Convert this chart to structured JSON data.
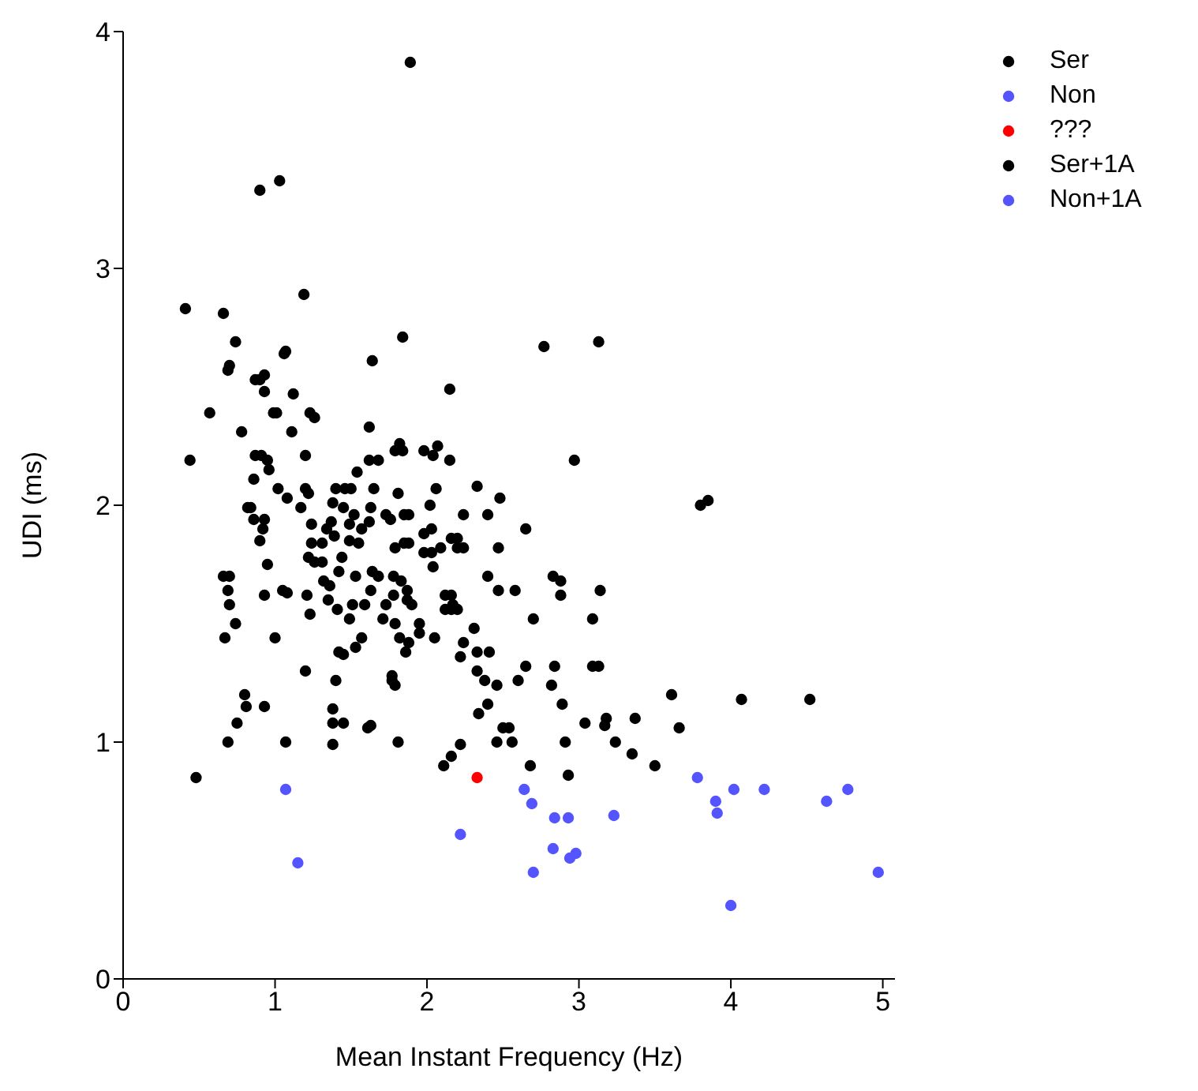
{
  "chart_data": {
    "type": "scatter",
    "xlabel": "Mean Instant Frequency (Hz)",
    "ylabel": "UDI (ms)",
    "xlim": [
      0,
      5.08
    ],
    "ylim": [
      0,
      4
    ],
    "xticks": [
      0,
      1,
      2,
      3,
      4,
      5
    ],
    "yticks": [
      0,
      1,
      2,
      3,
      4
    ],
    "grid": false,
    "legend": "top right",
    "marker": "circle",
    "series": [
      {
        "name": "Ser",
        "color": "#000000",
        "x": [
          0.41,
          0.66,
          1.19,
          0.93,
          1.2,
          0.95,
          1.45,
          0.86,
          1.39,
          1.53,
          1.63,
          1.51,
          1.0,
          1.4,
          0.81,
          0.93,
          1.63,
          2.77,
          3.13,
          2.97,
          1.82,
          1.79,
          1.98,
          2.04,
          2.33,
          2.02,
          1.76,
          2.03,
          2.65,
          2.16,
          2.24,
          2.47,
          1.88,
          1.78,
          2.16,
          2.2,
          2.47,
          2.88,
          2.05,
          1.86,
          2.24,
          1.79,
          2.65,
          2.46,
          2.89,
          2.46,
          2.56,
          2.91,
          2.11,
          2.93,
          3.17,
          3.24,
          3.8,
          3.85,
          3.61,
          4.07,
          4.52,
          3.37,
          3.66,
          3.5
        ],
        "values": [
          2.83,
          2.81,
          2.89,
          2.48,
          2.21,
          2.19,
          1.99,
          1.94,
          1.87,
          1.7,
          1.64,
          1.58,
          1.44,
          1.26,
          1.15,
          1.15,
          1.07,
          2.67,
          2.69,
          2.19,
          2.26,
          2.23,
          2.23,
          2.21,
          2.08,
          2.0,
          1.94,
          1.9,
          1.9,
          1.86,
          1.82,
          1.82,
          1.84,
          1.62,
          1.62,
          1.56,
          1.64,
          1.62,
          1.44,
          1.38,
          1.42,
          1.24,
          1.32,
          1.24,
          1.16,
          1.0,
          1.0,
          1.0,
          0.9,
          0.86,
          1.07,
          1.0,
          2.0,
          2.02,
          1.2,
          1.18,
          1.18,
          1.1,
          1.06,
          0.9
        ]
      },
      {
        "name": "Non",
        "color": "#5555ff",
        "x": [
          1.07,
          1.15,
          2.22,
          2.64,
          2.69,
          2.83,
          2.98,
          2.94,
          2.7,
          3.23,
          3.78,
          3.9,
          3.91,
          4.02,
          4.22,
          4.63,
          4.97,
          4.0
        ],
        "values": [
          0.8,
          0.49,
          0.61,
          0.8,
          0.74,
          0.55,
          0.53,
          0.51,
          0.45,
          0.69,
          0.85,
          0.75,
          0.7,
          0.8,
          0.8,
          0.75,
          0.45,
          0.31
        ]
      },
      {
        "name": "???",
        "color": "#ff0000",
        "x": [
          2.33
        ],
        "values": [
          0.85
        ]
      },
      {
        "name": "Ser+1A",
        "color": "#000000",
        "x": [
          1.89,
          0.9,
          1.03,
          0.74,
          0.7,
          0.69,
          1.07,
          1.06,
          1.64,
          0.87,
          0.9,
          0.93,
          1.12,
          0.57,
          0.99,
          1.01,
          1.23,
          1.26,
          0.78,
          1.11,
          1.62,
          0.44,
          0.87,
          0.91,
          0.96,
          0.86,
          1.62,
          1.68,
          1.54,
          1.02,
          1.08,
          1.2,
          1.22,
          1.17,
          1.4,
          1.46,
          1.5,
          1.65,
          1.38,
          1.63,
          0.82,
          0.84,
          1.52,
          0.93,
          0.92,
          0.9,
          1.24,
          1.34,
          1.37,
          1.49,
          1.57,
          1.62,
          1.49,
          1.55,
          1.24,
          1.31,
          0.95,
          1.22,
          1.26,
          1.31,
          1.44,
          1.42,
          1.64,
          1.68,
          0.66,
          0.7,
          1.32,
          1.36,
          0.69,
          1.05,
          1.08,
          0.93,
          1.21,
          0.7,
          1.35,
          1.59,
          1.41,
          1.23,
          1.49,
          0.74,
          0.67,
          1.57,
          1.53,
          1.42,
          1.45,
          1.2,
          0.8,
          1.38,
          0.75,
          1.38,
          1.45,
          1.61,
          0.69,
          1.07,
          1.38,
          0.48,
          1.84,
          2.15,
          1.84,
          2.07,
          2.15,
          1.81,
          2.06,
          2.48,
          1.73,
          1.85,
          1.88,
          2.24,
          2.4,
          1.98,
          1.85,
          1.79,
          1.98,
          2.03,
          2.09,
          2.2,
          2.2,
          2.04,
          1.78,
          1.83,
          1.87,
          1.87,
          1.9,
          1.73,
          1.71,
          1.79,
          1.95,
          1.95,
          1.82,
          1.88,
          2.12,
          2.12,
          2.16,
          2.17,
          2.4,
          2.58,
          2.83,
          2.88,
          3.14,
          2.7,
          3.09,
          2.31,
          2.33,
          2.41,
          2.22,
          2.84,
          3.09,
          3.13,
          2.33,
          2.38,
          2.6,
          2.82,
          1.77,
          1.77,
          2.4,
          2.34,
          3.04,
          3.18,
          2.5,
          2.54,
          1.81,
          2.22,
          2.16,
          2.68,
          3.35
        ],
        "values": [
          3.87,
          3.33,
          3.37,
          2.69,
          2.59,
          2.57,
          2.65,
          2.64,
          2.61,
          2.53,
          2.53,
          2.55,
          2.47,
          2.39,
          2.39,
          2.39,
          2.39,
          2.37,
          2.31,
          2.31,
          2.33,
          2.19,
          2.21,
          2.21,
          2.15,
          2.11,
          2.19,
          2.19,
          2.14,
          2.07,
          2.03,
          2.07,
          2.05,
          1.99,
          2.07,
          2.07,
          2.07,
          2.07,
          2.01,
          1.99,
          1.99,
          1.99,
          1.96,
          1.94,
          1.9,
          1.85,
          1.92,
          1.9,
          1.93,
          1.92,
          1.9,
          1.93,
          1.85,
          1.84,
          1.84,
          1.84,
          1.75,
          1.78,
          1.76,
          1.76,
          1.78,
          1.72,
          1.72,
          1.7,
          1.7,
          1.7,
          1.68,
          1.66,
          1.64,
          1.64,
          1.63,
          1.62,
          1.62,
          1.58,
          1.6,
          1.58,
          1.56,
          1.54,
          1.52,
          1.5,
          1.44,
          1.44,
          1.4,
          1.38,
          1.37,
          1.3,
          1.2,
          1.14,
          1.08,
          1.08,
          1.08,
          1.06,
          1.0,
          1.0,
          0.99,
          0.85,
          2.71,
          2.49,
          2.23,
          2.25,
          2.19,
          2.05,
          2.07,
          2.03,
          1.96,
          1.96,
          1.96,
          1.96,
          1.96,
          1.88,
          1.84,
          1.82,
          1.8,
          1.8,
          1.82,
          1.86,
          1.82,
          1.74,
          1.7,
          1.68,
          1.64,
          1.6,
          1.58,
          1.58,
          1.52,
          1.5,
          1.5,
          1.46,
          1.44,
          1.42,
          1.62,
          1.56,
          1.56,
          1.58,
          1.7,
          1.64,
          1.7,
          1.68,
          1.64,
          1.52,
          1.52,
          1.48,
          1.38,
          1.38,
          1.36,
          1.32,
          1.32,
          1.32,
          1.3,
          1.26,
          1.26,
          1.24,
          1.28,
          1.26,
          1.16,
          1.12,
          1.08,
          1.1,
          1.06,
          1.06,
          1.0,
          0.99,
          0.94,
          0.9,
          0.95
        ]
      },
      {
        "name": "Non+1A",
        "color": "#5555ff",
        "x": [
          2.84,
          2.93,
          4.77
        ],
        "values": [
          0.68,
          0.68,
          0.8
        ]
      }
    ]
  }
}
